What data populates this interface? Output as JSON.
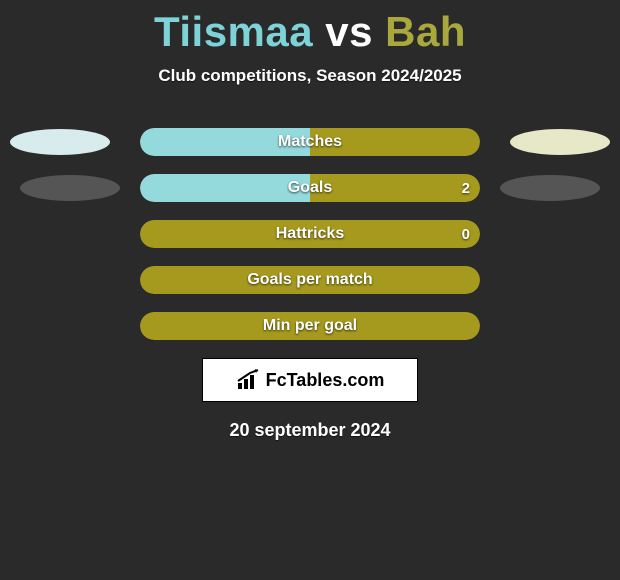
{
  "title": {
    "player1": "Tiismaa",
    "vs": "vs",
    "player2": "Bah"
  },
  "subtitle": "Club competitions, Season 2024/2025",
  "colors": {
    "player1_bar": "#94d9dc",
    "player2_bar": "#a69a1e",
    "player1_ellipse": "#d9eced",
    "player2_ellipse": "#e7e8c8",
    "neutral_ellipse": "#555555",
    "background": "#2a2a2a",
    "title_p1": "#7dd3d8",
    "title_p2": "#a8a83d"
  },
  "rows": [
    {
      "label": "Matches",
      "left_pct": 50,
      "right_pct": 50,
      "left_color": "#94d9dc",
      "right_color": "#a69a1e",
      "show_left_ellipse": "light",
      "show_right_ellipse": "light",
      "val_left": "",
      "val_right": ""
    },
    {
      "label": "Goals",
      "left_pct": 50,
      "right_pct": 50,
      "left_color": "#94d9dc",
      "right_color": "#a69a1e",
      "show_left_ellipse": "dark",
      "show_right_ellipse": "dark",
      "val_left": "",
      "val_right": "2"
    },
    {
      "label": "Hattricks",
      "left_pct": 0,
      "right_pct": 100,
      "left_color": "#94d9dc",
      "right_color": "#a69a1e",
      "show_left_ellipse": "none",
      "show_right_ellipse": "none",
      "val_left": "",
      "val_right": "0"
    },
    {
      "label": "Goals per match",
      "left_pct": 0,
      "right_pct": 100,
      "left_color": "#94d9dc",
      "right_color": "#a69a1e",
      "show_left_ellipse": "none",
      "show_right_ellipse": "none",
      "val_left": "",
      "val_right": ""
    },
    {
      "label": "Min per goal",
      "left_pct": 0,
      "right_pct": 100,
      "left_color": "#94d9dc",
      "right_color": "#a69a1e",
      "show_left_ellipse": "none",
      "show_right_ellipse": "none",
      "val_left": "",
      "val_right": ""
    }
  ],
  "logo_text": "FcTables.com",
  "date": "20 september 2024"
}
